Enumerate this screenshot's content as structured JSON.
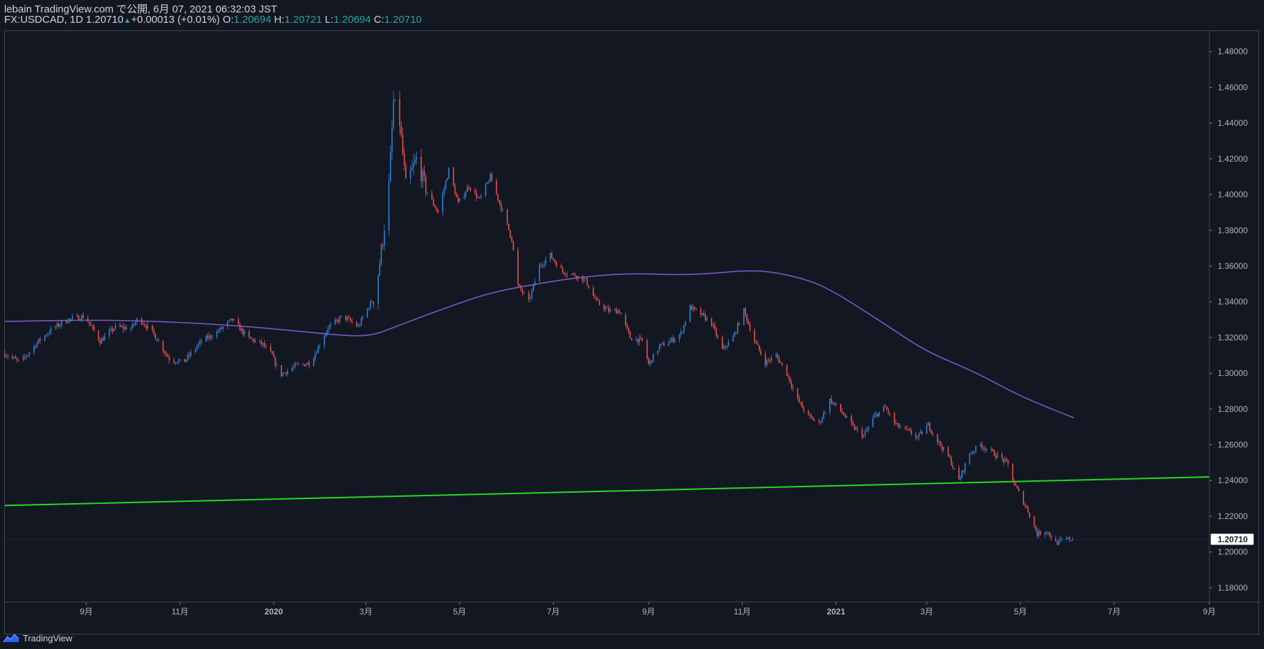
{
  "header": {
    "line1": "lebain TradingView.com で公開, 6月 07, 2021 06:32:03 JST",
    "symbol": "FX:USDCAD, 1D",
    "last": "1.20710",
    "change": "+0.00013 (+0.01%)",
    "o_label": "O:",
    "o_value": "1.20694",
    "h_label": "H:",
    "h_value": "1.20721",
    "l_label": "L:",
    "l_value": "1.20694",
    "c_label": "C:",
    "c_value": "1.20710"
  },
  "footer": {
    "brand": "TradingView"
  },
  "colors": {
    "background": "#131722",
    "up": "#2e86de",
    "down": "#ef5350",
    "ma": "#7e57c2",
    "trendline": "#22dd22",
    "axis_text": "#b2b5be",
    "last_price_bg": "#ffffff"
  },
  "chart_data": {
    "type": "candlestick",
    "symbol": "FX:USDCAD",
    "interval": "1D",
    "y_axis": {
      "side": "right",
      "range": [
        1.172,
        1.4915
      ],
      "ticks": [
        "1.18000",
        "1.20000",
        "1.22000",
        "1.24000",
        "1.26000",
        "1.28000",
        "1.30000",
        "1.32000",
        "1.34000",
        "1.36000",
        "1.38000",
        "1.40000",
        "1.42000",
        "1.44000",
        "1.46000",
        "1.48000"
      ]
    },
    "x_axis": {
      "range": [
        "2019-07-10",
        "2021-09-01"
      ],
      "ticks": [
        {
          "date": "2019-09-01",
          "label": "9月",
          "bold": false
        },
        {
          "date": "2019-11-01",
          "label": "11月",
          "bold": false
        },
        {
          "date": "2020-01-01",
          "label": "2020",
          "bold": true
        },
        {
          "date": "2020-03-01",
          "label": "3月",
          "bold": false
        },
        {
          "date": "2020-05-01",
          "label": "5月",
          "bold": false
        },
        {
          "date": "2020-07-01",
          "label": "7月",
          "bold": false
        },
        {
          "date": "2020-09-01",
          "label": "9月",
          "bold": false
        },
        {
          "date": "2020-11-01",
          "label": "11月",
          "bold": false
        },
        {
          "date": "2021-01-01",
          "label": "2021",
          "bold": true
        },
        {
          "date": "2021-03-01",
          "label": "3月",
          "bold": false
        },
        {
          "date": "2021-05-01",
          "label": "5月",
          "bold": false
        },
        {
          "date": "2021-07-01",
          "label": "7月",
          "bold": false
        },
        {
          "date": "2021-09-01",
          "label": "9月",
          "bold": false
        }
      ]
    },
    "last_price": 1.2071,
    "last_price_label": "1.20710",
    "price_path": [
      [
        "2019-07-10",
        1.311
      ],
      [
        "2019-07-20",
        1.306
      ],
      [
        "2019-08-01",
        1.318
      ],
      [
        "2019-08-10",
        1.325
      ],
      [
        "2019-08-20",
        1.33
      ],
      [
        "2019-08-31",
        1.332
      ],
      [
        "2019-09-10",
        1.318
      ],
      [
        "2019-09-20",
        1.326
      ],
      [
        "2019-09-30",
        1.325
      ],
      [
        "2019-10-05",
        1.331
      ],
      [
        "2019-10-15",
        1.322
      ],
      [
        "2019-10-25",
        1.308
      ],
      [
        "2019-11-03",
        1.306
      ],
      [
        "2019-11-15",
        1.318
      ],
      [
        "2019-11-25",
        1.323
      ],
      [
        "2019-12-05",
        1.33
      ],
      [
        "2019-12-15",
        1.32
      ],
      [
        "2019-12-25",
        1.316
      ],
      [
        "2019-12-31",
        1.31
      ],
      [
        "2020-01-05",
        1.299
      ],
      [
        "2020-01-15",
        1.304
      ],
      [
        "2020-01-25",
        1.306
      ],
      [
        "2020-02-05",
        1.325
      ],
      [
        "2020-02-15",
        1.332
      ],
      [
        "2020-02-25",
        1.326
      ],
      [
        "2020-03-02",
        1.336
      ],
      [
        "2020-03-06",
        1.342
      ],
      [
        "2020-03-09",
        1.356
      ],
      [
        "2020-03-12",
        1.375
      ],
      [
        "2020-03-16",
        1.405
      ],
      [
        "2020-03-19",
        1.452
      ],
      [
        "2020-03-23",
        1.44
      ],
      [
        "2020-03-27",
        1.405
      ],
      [
        "2020-04-03",
        1.42
      ],
      [
        "2020-04-10",
        1.401
      ],
      [
        "2020-04-17",
        1.39
      ],
      [
        "2020-04-24",
        1.414
      ],
      [
        "2020-04-30",
        1.395
      ],
      [
        "2020-05-07",
        1.405
      ],
      [
        "2020-05-14",
        1.397
      ],
      [
        "2020-05-21",
        1.41
      ],
      [
        "2020-05-28",
        1.393
      ],
      [
        "2020-06-04",
        1.375
      ],
      [
        "2020-06-08",
        1.349
      ],
      [
        "2020-06-15",
        1.34
      ],
      [
        "2020-06-22",
        1.36
      ],
      [
        "2020-06-29",
        1.366
      ],
      [
        "2020-07-07",
        1.357
      ],
      [
        "2020-07-15",
        1.355
      ],
      [
        "2020-07-22",
        1.352
      ],
      [
        "2020-07-29",
        1.34
      ],
      [
        "2020-08-06",
        1.335
      ],
      [
        "2020-08-13",
        1.335
      ],
      [
        "2020-08-20",
        1.32
      ],
      [
        "2020-08-28",
        1.318
      ],
      [
        "2020-09-01",
        1.305
      ],
      [
        "2020-09-08",
        1.315
      ],
      [
        "2020-09-15",
        1.318
      ],
      [
        "2020-09-22",
        1.322
      ],
      [
        "2020-09-28",
        1.337
      ],
      [
        "2020-10-05",
        1.333
      ],
      [
        "2020-10-12",
        1.328
      ],
      [
        "2020-10-19",
        1.313
      ],
      [
        "2020-10-26",
        1.32
      ],
      [
        "2020-11-02",
        1.335
      ],
      [
        "2020-11-09",
        1.318
      ],
      [
        "2020-11-16",
        1.306
      ],
      [
        "2020-11-23",
        1.31
      ],
      [
        "2020-11-30",
        1.3
      ],
      [
        "2020-12-07",
        1.285
      ],
      [
        "2020-12-14",
        1.276
      ],
      [
        "2020-12-21",
        1.272
      ],
      [
        "2020-12-28",
        1.285
      ],
      [
        "2021-01-05",
        1.278
      ],
      [
        "2021-01-12",
        1.27
      ],
      [
        "2021-01-19",
        1.265
      ],
      [
        "2021-01-26",
        1.276
      ],
      [
        "2021-02-02",
        1.281
      ],
      [
        "2021-02-09",
        1.271
      ],
      [
        "2021-02-16",
        1.268
      ],
      [
        "2021-02-23",
        1.264
      ],
      [
        "2021-03-02",
        1.271
      ],
      [
        "2021-03-09",
        1.261
      ],
      [
        "2021-03-16",
        1.252
      ],
      [
        "2021-03-22",
        1.24
      ],
      [
        "2021-03-29",
        1.255
      ],
      [
        "2021-04-05",
        1.26
      ],
      [
        "2021-04-12",
        1.256
      ],
      [
        "2021-04-19",
        1.252
      ],
      [
        "2021-04-23",
        1.249
      ],
      [
        "2021-04-27",
        1.238
      ],
      [
        "2021-05-03",
        1.228
      ],
      [
        "2021-05-07",
        1.221
      ],
      [
        "2021-05-12",
        1.21
      ],
      [
        "2021-05-18",
        1.212
      ],
      [
        "2021-05-24",
        1.205
      ],
      [
        "2021-05-31",
        1.207
      ],
      [
        "2021-06-04",
        1.2071
      ]
    ],
    "moving_average": {
      "color": "#7e57c2",
      "points": [
        [
          "2019-07-10",
          1.329
        ],
        [
          "2019-09-15",
          1.33
        ],
        [
          "2019-11-15",
          1.328
        ],
        [
          "2020-01-01",
          1.325
        ],
        [
          "2020-02-15",
          1.321
        ],
        [
          "2020-03-05",
          1.321
        ],
        [
          "2020-03-20",
          1.326
        ],
        [
          "2020-04-20",
          1.336
        ],
        [
          "2020-05-20",
          1.345
        ],
        [
          "2020-06-20",
          1.35
        ],
        [
          "2020-07-20",
          1.354
        ],
        [
          "2020-08-20",
          1.356
        ],
        [
          "2020-09-20",
          1.355
        ],
        [
          "2020-10-15",
          1.356
        ],
        [
          "2020-11-01",
          1.3575
        ],
        [
          "2020-11-20",
          1.357
        ],
        [
          "2020-12-15",
          1.352
        ],
        [
          "2021-01-01",
          1.345
        ],
        [
          "2021-02-01",
          1.328
        ],
        [
          "2021-03-01",
          1.312
        ],
        [
          "2021-04-01",
          1.301
        ],
        [
          "2021-05-01",
          1.287
        ],
        [
          "2021-06-05",
          1.275
        ]
      ]
    },
    "trendline": {
      "color": "#22dd22",
      "start": [
        "2019-07-10",
        1.226
      ],
      "end": [
        "2021-09-01",
        1.242
      ]
    }
  }
}
